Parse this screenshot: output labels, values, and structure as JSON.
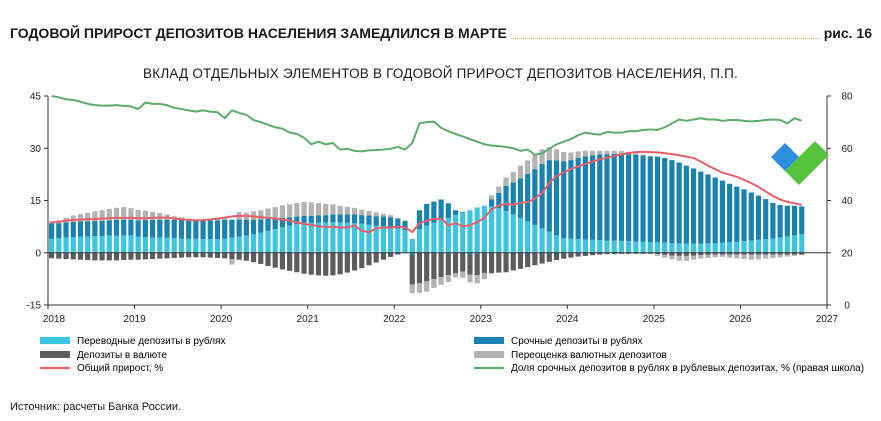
{
  "header": {
    "title": "ГОДОВОЙ ПРИРОСТ ДЕПОЗИТОВ НАСЕЛЕНИЯ ЗАМЕДЛИЛСЯ В МАРТЕ",
    "figure_number": "рис. 16"
  },
  "source": "Источник: расчеты Банка России.",
  "colors": {
    "transfer_rub": "#3cc4e0",
    "term_rub": "#1a82b0",
    "fx_deposits": "#5c5c5c",
    "fx_revaluation": "#b3b3b3",
    "total_growth": "#e8606a",
    "term_share": "#5eab6b",
    "logo_blue": "#2e8fe0",
    "logo_green": "#55c43a"
  },
  "chart_data": {
    "type": "bar",
    "title": "ВКЛАД ОТДЕЛЬНЫХ ЭЛЕМЕНТОВ В ГОДОВОЙ ПРИРОСТ ДЕПОЗИТОВ НАСЕЛЕНИЯ, П.П.",
    "stacked": true,
    "x_start": "2018-01",
    "x_ticks": [
      "2018",
      "2019",
      "2020",
      "2021",
      "2022",
      "2023",
      "2024",
      "2025",
      "2026",
      "2027"
    ],
    "ylim": [
      -15,
      45
    ],
    "y_ticks": [
      -15,
      0,
      15,
      30,
      45
    ],
    "y2lim": [
      0,
      80
    ],
    "y2_ticks": [
      0,
      20,
      40,
      60,
      80
    ],
    "grid": false,
    "legend_position": "bottom",
    "series": [
      {
        "name": "Переводные депозиты в рублях",
        "role": "transfer_rub",
        "kind": "bar",
        "values": [
          4.0,
          4.2,
          4.4,
          4.5,
          4.6,
          4.7,
          4.8,
          4.8,
          4.9,
          4.9,
          5.0,
          5.0,
          4.6,
          4.5,
          4.4,
          4.4,
          4.3,
          4.2,
          4.1,
          4.0,
          4.0,
          3.9,
          3.9,
          3.9,
          4.1,
          4.3,
          4.6,
          4.9,
          5.3,
          5.8,
          6.3,
          6.8,
          7.3,
          7.8,
          8.2,
          8.6,
          8.6,
          8.7,
          8.7,
          8.8,
          8.7,
          8.6,
          8.5,
          8.3,
          8.1,
          7.8,
          7.6,
          7.3,
          6.9,
          6.5,
          4.0,
          6.8,
          7.8,
          8.6,
          9.3,
          10.0,
          10.8,
          11.5,
          12.2,
          13.0,
          13.5,
          13.3,
          12.8,
          12.0,
          11.0,
          10.0,
          9.0,
          8.0,
          7.0,
          6.0,
          5.0,
          4.2,
          4.0,
          3.9,
          3.8,
          3.7,
          3.6,
          3.5,
          3.5,
          3.4,
          3.3,
          3.2,
          3.1,
          3.0,
          3.0,
          2.9,
          2.8,
          2.7,
          2.6,
          2.6,
          2.6,
          2.7,
          2.8,
          2.9,
          3.0,
          3.1,
          3.3,
          3.5,
          3.7,
          3.9,
          4.1,
          4.4,
          4.7,
          5.0,
          5.3
        ]
      },
      {
        "name": "Срочные депозиты в рублях",
        "role": "term_rub",
        "kind": "bar",
        "values": [
          4.5,
          4.3,
          4.3,
          4.4,
          4.4,
          4.3,
          4.3,
          4.4,
          4.4,
          4.5,
          4.5,
          4.5,
          4.7,
          4.9,
          5.0,
          5.1,
          5.2,
          5.2,
          5.3,
          5.3,
          5.3,
          5.4,
          5.4,
          5.4,
          5.4,
          5.2,
          4.9,
          4.6,
          4.2,
          3.8,
          3.4,
          3.0,
          2.7,
          2.4,
          2.2,
          2.0,
          2.0,
          2.0,
          2.1,
          2.2,
          2.3,
          2.4,
          2.5,
          2.5,
          2.6,
          2.7,
          2.8,
          2.9,
          2.9,
          2.6,
          -0.6,
          5.4,
          6.2,
          6.1,
          6.0,
          4.2,
          1.4,
          0.2,
          -0.4,
          -0.3,
          0.0,
          2.0,
          4.4,
          7.2,
          9.2,
          11.4,
          13.6,
          16.0,
          18.5,
          20.6,
          21.5,
          22.0,
          22.6,
          23.3,
          23.9,
          24.3,
          24.6,
          24.8,
          24.9,
          25.0,
          25.0,
          24.9,
          24.8,
          24.7,
          24.6,
          24.3,
          23.8,
          23.2,
          22.4,
          21.6,
          20.7,
          19.8,
          18.8,
          17.8,
          16.8,
          15.9,
          14.9,
          13.8,
          12.7,
          11.5,
          10.2,
          9.3,
          8.8,
          8.5,
          8.0
        ]
      },
      {
        "name": "Депозиты в валюте",
        "role": "fx_deposits",
        "kind": "bar",
        "values": [
          -1.6,
          -1.7,
          -1.8,
          -1.9,
          -2.0,
          -2.1,
          -2.2,
          -2.2,
          -2.2,
          -2.2,
          -2.1,
          -2.0,
          -2.0,
          -1.9,
          -1.8,
          -1.7,
          -1.6,
          -1.5,
          -1.4,
          -1.3,
          -1.3,
          -1.3,
          -1.4,
          -1.5,
          -1.6,
          -1.8,
          -2.0,
          -2.3,
          -2.7,
          -3.2,
          -3.8,
          -4.3,
          -4.8,
          -5.2,
          -5.6,
          -6.0,
          -6.3,
          -6.5,
          -6.6,
          -6.5,
          -6.2,
          -5.7,
          -5.1,
          -4.4,
          -3.6,
          -2.8,
          -2.0,
          -1.2,
          -0.5,
          -0.1,
          -8.5,
          -8.7,
          -8.2,
          -7.6,
          -7.0,
          -6.4,
          -5.9,
          -5.4,
          -5.9,
          -6.1,
          -5.8,
          -5.9,
          -5.7,
          -5.6,
          -5.1,
          -4.6,
          -4.1,
          -3.6,
          -3.1,
          -2.6,
          -2.1,
          -1.7,
          -1.4,
          -1.1,
          -0.9,
          -0.7,
          -0.5,
          -0.4,
          -0.4,
          -0.3,
          -0.3,
          -0.3,
          -0.3,
          -0.3,
          -0.4,
          -0.6,
          -0.8,
          -0.9,
          -0.9,
          -0.8,
          -0.7,
          -0.6,
          -0.5,
          -0.5,
          -0.5,
          -0.5,
          -0.5,
          -0.5,
          -0.5,
          -0.5,
          -0.5,
          -0.5,
          -0.5,
          -0.5,
          -0.5
        ]
      },
      {
        "name": "Переоценка валютных депозитов",
        "role": "fx_revaluation",
        "kind": "bar",
        "values": [
          0.6,
          0.8,
          1.3,
          1.8,
          2.1,
          2.5,
          2.8,
          3.0,
          3.3,
          3.5,
          3.6,
          3.3,
          3.0,
          2.7,
          2.3,
          1.9,
          1.5,
          1.1,
          0.8,
          0.5,
          0.3,
          0.2,
          0.3,
          0.5,
          0.8,
          -1.6,
          2.2,
          2.0,
          2.4,
          2.6,
          3.0,
          3.3,
          3.6,
          3.7,
          3.9,
          4.0,
          3.9,
          3.6,
          3.2,
          2.9,
          2.5,
          2.2,
          1.9,
          1.6,
          1.3,
          1.1,
          0.8,
          0.6,
          0.2,
          0.2,
          -2.5,
          -2.8,
          -3.0,
          -2.5,
          -2.2,
          -2.0,
          -1.2,
          -1.8,
          -2.2,
          -2.4,
          -1.8,
          1.2,
          1.8,
          2.4,
          3.0,
          3.6,
          3.9,
          4.1,
          4.2,
          3.7,
          3.2,
          2.7,
          2.2,
          1.9,
          1.6,
          1.3,
          1.1,
          1.0,
          0.9,
          0.8,
          0.7,
          0.5,
          0.3,
          0.1,
          -0.5,
          -0.8,
          -1.1,
          -1.4,
          -1.4,
          -1.2,
          -1.0,
          -0.9,
          -0.8,
          -0.7,
          -0.9,
          -1.1,
          -1.3,
          -1.5,
          -1.4,
          -1.2,
          -1.0,
          -0.8,
          -0.6,
          -0.4,
          -0.2
        ]
      },
      {
        "name": "Общий прирост, %",
        "role": "total_growth",
        "kind": "line",
        "axis": "left",
        "values": [
          8.6,
          8.9,
          9.2,
          9.4,
          9.5,
          9.6,
          9.7,
          9.8,
          9.9,
          10.0,
          10.0,
          10.0,
          9.9,
          9.9,
          10.0,
          10.1,
          10.1,
          9.8,
          9.6,
          9.4,
          9.3,
          9.4,
          9.6,
          9.8,
          10.1,
          10.4,
          10.6,
          10.6,
          10.4,
          10.2,
          10.0,
          9.8,
          9.5,
          9.3,
          8.7,
          8.3,
          8.0,
          7.6,
          7.4,
          7.5,
          7.2,
          7.3,
          7.8,
          6.3,
          5.9,
          7.0,
          7.3,
          7.2,
          7.5,
          7.3,
          5.9,
          8.5,
          9.2,
          9.7,
          9.8,
          7.9,
          8.5,
          7.6,
          7.9,
          8.8,
          10.0,
          12.5,
          13.5,
          14.0,
          13.8,
          14.3,
          14.5,
          15.5,
          17.2,
          20.0,
          22.0,
          23.0,
          24.0,
          24.8,
          25.5,
          26.2,
          26.8,
          27.3,
          27.8,
          28.2,
          28.6,
          28.9,
          29.0,
          28.9,
          28.8,
          28.6,
          28.3,
          28.0,
          27.6,
          27.2,
          26.2,
          25.0,
          24.0,
          23.0,
          22.4,
          21.8,
          20.9,
          20.0,
          18.9,
          17.6,
          16.3,
          15.3,
          14.6,
          14.2,
          13.7
        ]
      },
      {
        "name": "Доля срочных депозитов в рублях в рублевых депозитах, % (правая школа)",
        "role": "term_share",
        "kind": "line",
        "axis": "right",
        "values": [
          80.0,
          79.5,
          78.7,
          78.5,
          77.8,
          77.0,
          76.5,
          76.3,
          76.3,
          76.5,
          76.2,
          76.0,
          75.0,
          77.5,
          77.0,
          77.0,
          76.5,
          75.5,
          75.0,
          74.5,
          74.0,
          74.5,
          74.0,
          73.8,
          71.5,
          74.5,
          73.5,
          72.8,
          70.8,
          70.0,
          69.0,
          68.0,
          67.5,
          66.0,
          65.5,
          64.0,
          61.5,
          62.5,
          61.5,
          62.0,
          59.5,
          59.8,
          59.0,
          58.8,
          59.2,
          59.3,
          59.5,
          59.8,
          60.5,
          59.5,
          62.0,
          69.5,
          70.0,
          70.2,
          67.8,
          66.5,
          65.5,
          64.5,
          63.5,
          62.5,
          61.5,
          61.0,
          60.8,
          60.5,
          60.0,
          59.0,
          59.5,
          57.5,
          58.0,
          59.8,
          61.5,
          62.5,
          63.5,
          65.0,
          66.0,
          65.5,
          65.2,
          66.2,
          66.0,
          66.0,
          66.5,
          66.5,
          67.0,
          67.2,
          67.0,
          68.0,
          69.5,
          71.0,
          70.5,
          71.0,
          71.5,
          71.0,
          71.0,
          70.5,
          70.8,
          70.8,
          70.5,
          70.3,
          70.5,
          70.8,
          71.0,
          70.8,
          69.5,
          71.5,
          70.5
        ]
      }
    ]
  }
}
